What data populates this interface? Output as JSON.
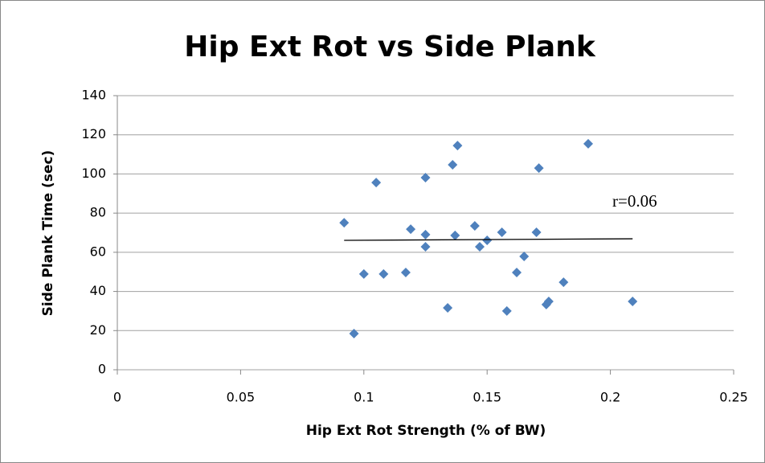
{
  "chart_data": {
    "type": "scatter",
    "title": "Hip Ext Rot vs Side Plank",
    "x_label": "Hip Ext Rot Strength (% of BW)",
    "y_label": "Side Plank Time (sec)",
    "annotation": "r=0.06",
    "color": "#4f81bd",
    "grid": true,
    "xlim": [
      0,
      0.25
    ],
    "xticks": [
      0,
      0.05,
      0.1,
      0.15,
      0.2,
      0.25
    ],
    "ylim": [
      0,
      140
    ],
    "yticks": [
      0,
      20,
      40,
      60,
      80,
      100,
      120,
      140
    ],
    "x": [
      0.092,
      0.096,
      0.1,
      0.105,
      0.108,
      0.117,
      0.119,
      0.125,
      0.125,
      0.125,
      0.134,
      0.136,
      0.137,
      0.138,
      0.145,
      0.147,
      0.15,
      0.156,
      0.158,
      0.162,
      0.165,
      0.17,
      0.171,
      0.174,
      0.175,
      0.181,
      0.191,
      0.209
    ],
    "values": [
      75.1,
      18.5,
      48.9,
      95.6,
      48.9,
      49.7,
      71.8,
      98.1,
      69.0,
      62.8,
      31.6,
      104.7,
      68.6,
      114.5,
      73.5,
      62.8,
      66.1,
      70.2,
      30.0,
      49.7,
      57.9,
      70.2,
      103.0,
      33.3,
      34.9,
      44.7,
      115.4,
      34.9
    ],
    "trendline": {
      "x": [
        0.092,
        0.209
      ],
      "values": [
        66.1,
        66.9
      ]
    }
  }
}
